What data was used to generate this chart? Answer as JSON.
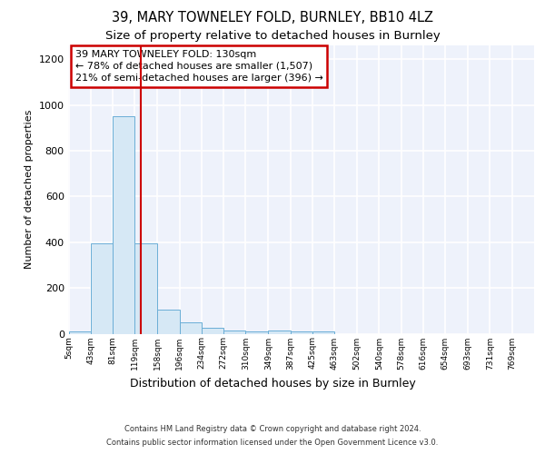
{
  "title1": "39, MARY TOWNELEY FOLD, BURNLEY, BB10 4LZ",
  "title2": "Size of property relative to detached houses in Burnley",
  "xlabel": "Distribution of detached houses by size in Burnley",
  "ylabel": "Number of detached properties",
  "footer_line1": "Contains HM Land Registry data © Crown copyright and database right 2024.",
  "footer_line2": "Contains public sector information licensed under the Open Government Licence v3.0.",
  "bin_edges": [
    5,
    43,
    81,
    119,
    158,
    196,
    234,
    272,
    310,
    349,
    387,
    425,
    463,
    502,
    540,
    578,
    616,
    654,
    693,
    731,
    769
  ],
  "bar_heights": [
    10,
    395,
    950,
    395,
    105,
    50,
    25,
    12,
    8,
    12,
    10,
    10,
    0,
    0,
    0,
    0,
    0,
    0,
    0,
    0
  ],
  "bar_color": "#d6e8f5",
  "bar_edge_color": "#6baed6",
  "property_size": 130,
  "vline_color": "#cc0000",
  "annotation_text": "39 MARY TOWNELEY FOLD: 130sqm\n← 78% of detached houses are smaller (1,507)\n21% of semi-detached houses are larger (396) →",
  "annotation_box_color": "#cc0000",
  "ylim": [
    0,
    1260
  ],
  "yticks": [
    0,
    200,
    400,
    600,
    800,
    1000,
    1200
  ],
  "background_color": "#eef2fb",
  "grid_color": "#ffffff",
  "title1_fontsize": 10.5,
  "title2_fontsize": 9.5,
  "xlabel_fontsize": 9,
  "ylabel_fontsize": 8,
  "annotation_fontsize": 8,
  "footer_fontsize": 6
}
